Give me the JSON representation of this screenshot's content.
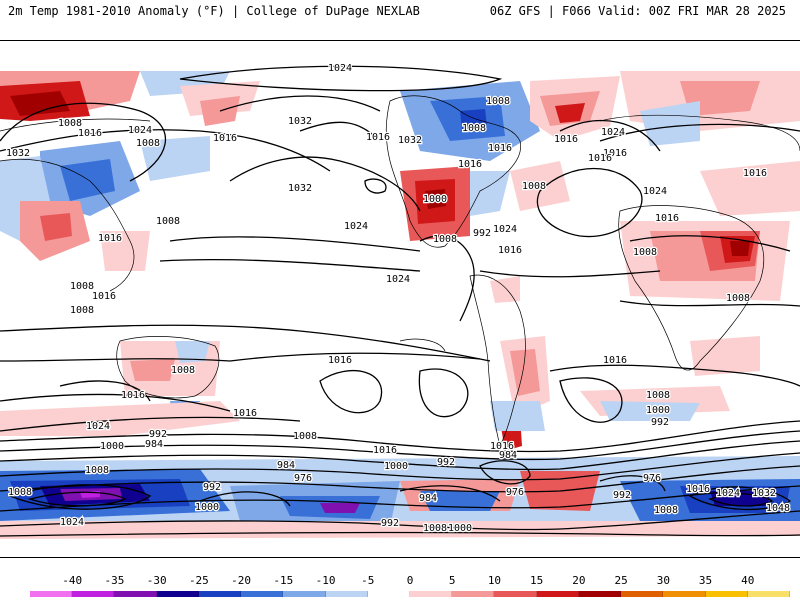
{
  "header": {
    "left_title": "2m Temp 1981-2010 Anomaly (°F) | College of DuPage NEXLAB",
    "right_title": "06Z GFS | F066 Valid: 00Z FRI MAR 28 2025"
  },
  "legend": {
    "ticks": [
      "-40",
      "-35",
      "-30",
      "-25",
      "-20",
      "-15",
      "-10",
      "-5",
      "0",
      "5",
      "10",
      "15",
      "20",
      "25",
      "30",
      "35",
      "40"
    ],
    "colors": [
      "#f070f0",
      "#c020e0",
      "#8010b0",
      "#100090",
      "#1840c0",
      "#3870d8",
      "#7fa8e8",
      "#bcd4f4",
      "#ffffff",
      "#fcd0d0",
      "#f49898",
      "#e85858",
      "#d01818",
      "#a00000",
      "#e06000",
      "#f09000",
      "#f8c000",
      "#f8e068"
    ]
  },
  "isobar_labels": [
    "1024",
    "1008",
    "1016",
    "1032",
    "1024",
    "1032",
    "1016",
    "1008",
    "1016",
    "1008",
    "1016",
    "1032",
    "1024",
    "1024",
    "992",
    "1000",
    "1024",
    "1016",
    "1016",
    "1008",
    "1008",
    "1032",
    "1016",
    "1008",
    "1016",
    "1024",
    "1016",
    "1024",
    "1008",
    "1016",
    "1008",
    "1016",
    "1016",
    "1008",
    "1008",
    "1008",
    "1016",
    "1016",
    "1016",
    "1008",
    "1008",
    "1016",
    "1016",
    "1016",
    "1008",
    "1000",
    "992",
    "1024",
    "1000",
    "992",
    "984",
    "1008",
    "1016",
    "1000",
    "992",
    "984",
    "984",
    "976",
    "984",
    "976",
    "992",
    "976",
    "1000",
    "1008",
    "992",
    "1024",
    "1008",
    "1000",
    "1008",
    "992",
    "1016",
    "1024",
    "1032",
    "1048"
  ]
}
